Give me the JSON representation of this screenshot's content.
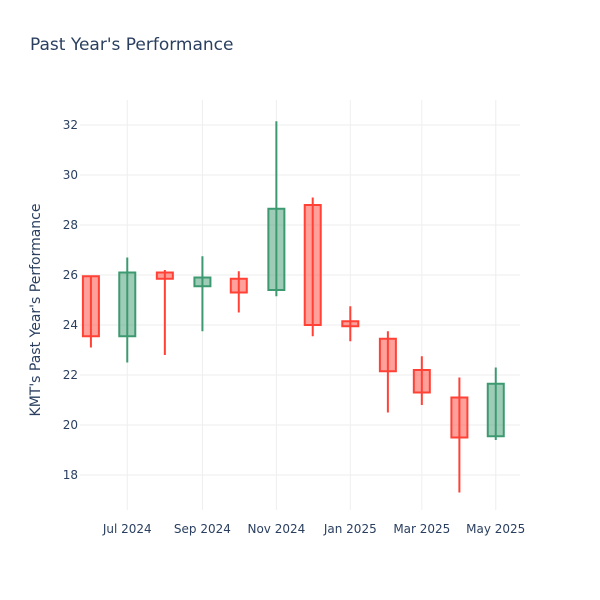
{
  "chart_data": {
    "type": "candlestick",
    "title": "Past Year's Performance",
    "xlabel": "",
    "ylabel": "KMT's Past Year's Performance",
    "ylim": [
      16.6,
      33.0
    ],
    "yticks": [
      18,
      20,
      22,
      24,
      26,
      28,
      30,
      32
    ],
    "xrange": [
      "2024-05-23",
      "2025-05-21"
    ],
    "xticks": [
      {
        "date": "2024-07-01",
        "label": "Jul 2024"
      },
      {
        "date": "2024-09-01",
        "label": "Sep 2024"
      },
      {
        "date": "2024-11-01",
        "label": "Nov 2024"
      },
      {
        "date": "2025-01-01",
        "label": "Jan 2025"
      },
      {
        "date": "2025-03-01",
        "label": "Mar 2025"
      },
      {
        "date": "2025-05-01",
        "label": "May 2025"
      }
    ],
    "increasing_color": "#3d9970",
    "decreasing_color": "#ff4136",
    "candles": [
      {
        "date": "2024-06-01",
        "open": 25.95,
        "high": 25.95,
        "low": 23.1,
        "close": 23.55
      },
      {
        "date": "2024-07-01",
        "open": 23.55,
        "high": 26.7,
        "low": 22.5,
        "close": 26.1
      },
      {
        "date": "2024-08-01",
        "open": 26.1,
        "high": 26.2,
        "low": 22.8,
        "close": 25.85
      },
      {
        "date": "2024-09-01",
        "open": 25.55,
        "high": 26.75,
        "low": 23.75,
        "close": 25.9
      },
      {
        "date": "2024-10-01",
        "open": 25.85,
        "high": 26.15,
        "low": 24.5,
        "close": 25.3
      },
      {
        "date": "2024-11-01",
        "open": 25.4,
        "high": 32.15,
        "low": 25.15,
        "close": 28.65
      },
      {
        "date": "2024-12-01",
        "open": 28.8,
        "high": 29.1,
        "low": 23.55,
        "close": 24.0
      },
      {
        "date": "2025-01-01",
        "open": 24.15,
        "high": 24.75,
        "low": 23.35,
        "close": 23.95
      },
      {
        "date": "2025-02-01",
        "open": 23.45,
        "high": 23.75,
        "low": 20.5,
        "close": 22.15
      },
      {
        "date": "2025-03-01",
        "open": 22.2,
        "high": 22.75,
        "low": 20.8,
        "close": 21.3
      },
      {
        "date": "2025-04-01",
        "open": 21.1,
        "high": 21.9,
        "low": 17.3,
        "close": 19.5
      },
      {
        "date": "2025-05-01",
        "open": 19.55,
        "high": 22.3,
        "low": 19.4,
        "close": 21.65
      }
    ]
  }
}
